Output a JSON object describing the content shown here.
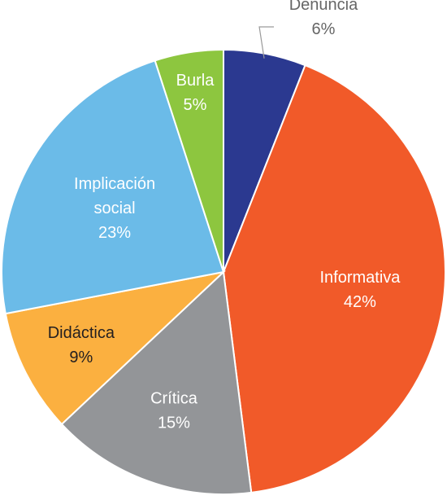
{
  "chart_data": {
    "type": "pie",
    "title": "",
    "start_angle_deg": 0,
    "direction": "clockwise",
    "legend": "none",
    "slices": [
      {
        "label": "Denuncia",
        "value": 6,
        "value_label": "6%",
        "color": "#2b3990",
        "label_position": "outside",
        "label_color": "#666666"
      },
      {
        "label": "Informativa",
        "value": 42,
        "value_label": "42%",
        "color": "#f15a29",
        "label_position": "inside",
        "label_color": "#ffffff"
      },
      {
        "label": "Crítica",
        "value": 15,
        "value_label": "15%",
        "color": "#939598",
        "label_position": "inside",
        "label_color": "#ffffff"
      },
      {
        "label": "Didáctica",
        "value": 9,
        "value_label": "9%",
        "color": "#fbb040",
        "label_position": "inside",
        "label_color": "#231f20"
      },
      {
        "label": "Implicación social",
        "value": 23,
        "value_label": "23%",
        "color": "#6bbbe8",
        "label_position": "inside",
        "label_color": "#ffffff"
      },
      {
        "label": "Burla",
        "value": 5,
        "value_label": "5%",
        "color": "#8dc63f",
        "label_position": "inside",
        "label_color": "#ffffff"
      }
    ]
  }
}
